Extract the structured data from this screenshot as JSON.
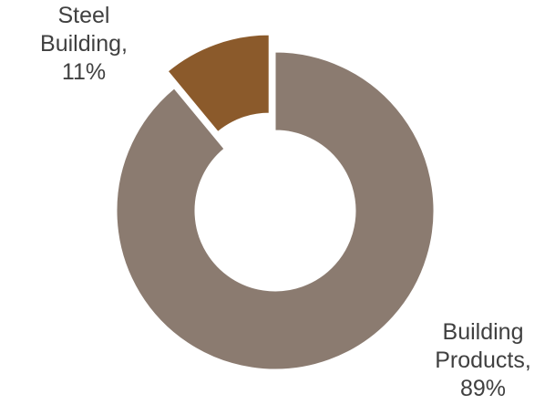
{
  "chart_data": {
    "type": "pie",
    "variant": "donut",
    "title": "",
    "legend": "none",
    "slices": [
      {
        "name": "Steel Building",
        "value": 11,
        "color": "#8B5A2B",
        "exploded": true,
        "label_lines": [
          "Steel",
          "Building,",
          "11%"
        ]
      },
      {
        "name": "Building Products",
        "value": 89,
        "color": "#8B7B70",
        "exploded": false,
        "label_lines": [
          "Building",
          "Products,",
          "89%"
        ]
      }
    ]
  }
}
